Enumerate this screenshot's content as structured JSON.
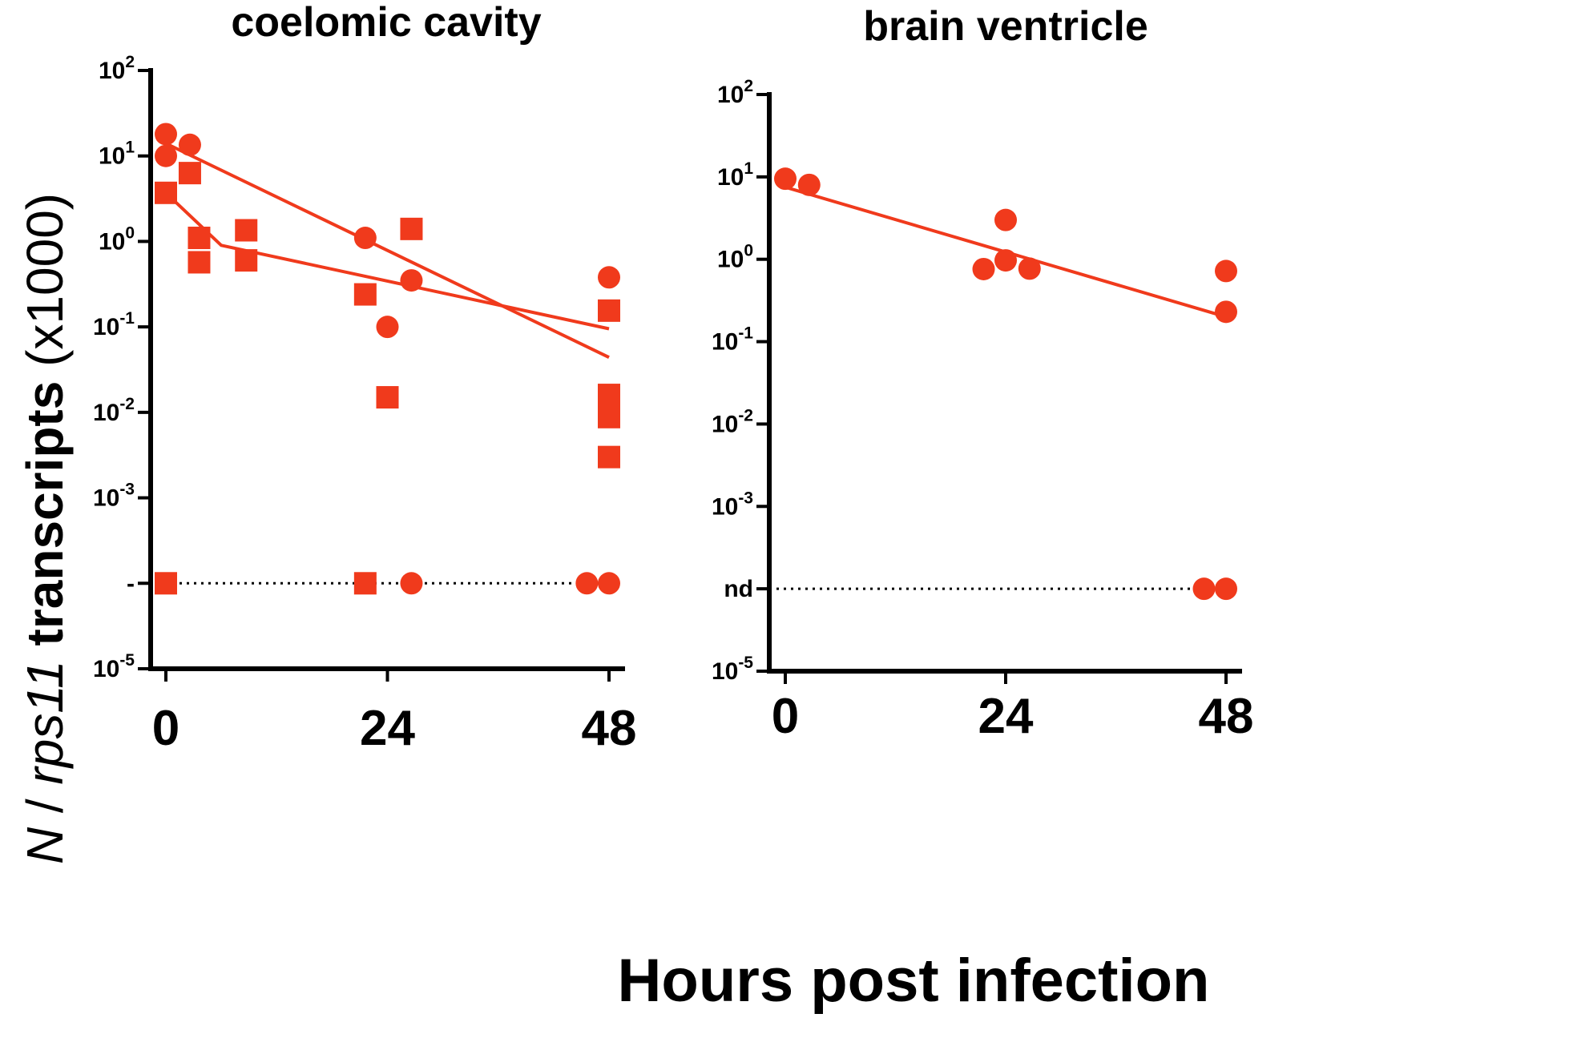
{
  "figure": {
    "xlabel": "Hours post infection",
    "ylabel": {
      "part_n": "N",
      "part_sep": " / ",
      "part_gene": "rps11",
      "part_transcripts": " transcripts ",
      "part_scale": "(x1000)"
    }
  },
  "colors": {
    "series": "#f03a1c",
    "axis": "#000000"
  },
  "chart_data": [
    {
      "type": "scatter",
      "title": "coelomic cavity",
      "yscale": "log",
      "ylim_exp": [
        -5,
        2
      ],
      "yticks": [
        {
          "exp": 2,
          "base": "10",
          "sup": "2"
        },
        {
          "exp": 1,
          "base": "10",
          "sup": "1"
        },
        {
          "exp": 0,
          "base": "10",
          "sup": "0"
        },
        {
          "exp": -1,
          "base": "10",
          "sup": "-1"
        },
        {
          "exp": -2,
          "base": "10",
          "sup": "-2"
        },
        {
          "exp": -3,
          "base": "10",
          "sup": "-3"
        },
        {
          "exp": -4,
          "base": "-",
          "sup": ""
        },
        {
          "exp": -5,
          "base": "10",
          "sup": "-5"
        }
      ],
      "xticks": [
        "0",
        "24",
        "48"
      ],
      "xlim": [
        0,
        48
      ],
      "nd_exp": -4,
      "series": [
        {
          "name": "circles",
          "marker": "circle",
          "points": [
            {
              "x": 0,
              "y": 18
            },
            {
              "x": 0,
              "y": 10
            },
            {
              "x": 2.6,
              "y": 13.5
            },
            {
              "x": 21.6,
              "y": 1.1
            },
            {
              "x": 24,
              "y": 0.1
            },
            {
              "x": 26.6,
              "y": 0.35
            },
            {
              "x": 48,
              "y": 0.38
            }
          ],
          "nd_x": [
            26.6,
            45.6,
            48
          ],
          "fit": [
            {
              "x": 0,
              "y": 14
            },
            {
              "x": 48,
              "y": 0.044
            }
          ]
        },
        {
          "name": "squares",
          "marker": "square",
          "points": [
            {
              "x": 0,
              "y": 3.7
            },
            {
              "x": 2.6,
              "y": 6.3
            },
            {
              "x": 3.6,
              "y": 1.1
            },
            {
              "x": 3.6,
              "y": 0.57
            },
            {
              "x": 8.7,
              "y": 1.35
            },
            {
              "x": 8.7,
              "y": 0.6
            },
            {
              "x": 21.6,
              "y": 0.24
            },
            {
              "x": 24,
              "y": 0.015
            },
            {
              "x": 26.6,
              "y": 1.4
            },
            {
              "x": 48,
              "y": 0.155
            },
            {
              "x": 48,
              "y": 0.016
            },
            {
              "x": 48,
              "y": 0.0088
            },
            {
              "x": 48,
              "y": 0.003
            }
          ],
          "nd_x": [
            0,
            21.6
          ],
          "fit": [
            {
              "x": 0,
              "y": 3.7
            },
            {
              "x": 6,
              "y": 0.9
            },
            {
              "x": 48,
              "y": 0.095
            }
          ]
        }
      ]
    },
    {
      "type": "scatter",
      "title": "brain ventricle",
      "yscale": "log",
      "ylim_exp": [
        -5,
        2
      ],
      "yticks": [
        {
          "exp": 2,
          "base": "10",
          "sup": "2"
        },
        {
          "exp": 1,
          "base": "10",
          "sup": "1"
        },
        {
          "exp": 0,
          "base": "10",
          "sup": "0"
        },
        {
          "exp": -1,
          "base": "10",
          "sup": "-1"
        },
        {
          "exp": -2,
          "base": "10",
          "sup": "-2"
        },
        {
          "exp": -3,
          "base": "10",
          "sup": "-3"
        },
        {
          "exp": -4,
          "base": "nd",
          "sup": ""
        },
        {
          "exp": -5,
          "base": "10",
          "sup": "-5"
        }
      ],
      "xticks": [
        "0",
        "24",
        "48"
      ],
      "xlim": [
        0,
        48
      ],
      "nd_exp": -4,
      "series": [
        {
          "name": "circles",
          "marker": "circle",
          "points": [
            {
              "x": 0,
              "y": 9.5
            },
            {
              "x": 2.6,
              "y": 8
            },
            {
              "x": 21.6,
              "y": 0.76
            },
            {
              "x": 24,
              "y": 3
            },
            {
              "x": 24,
              "y": 0.97
            },
            {
              "x": 26.6,
              "y": 0.77
            },
            {
              "x": 48,
              "y": 0.72
            },
            {
              "x": 48,
              "y": 0.23
            }
          ],
          "nd_x": [
            45.6,
            48
          ],
          "fit": [
            {
              "x": 0,
              "y": 7.5
            },
            {
              "x": 48,
              "y": 0.2
            }
          ]
        }
      ]
    }
  ]
}
